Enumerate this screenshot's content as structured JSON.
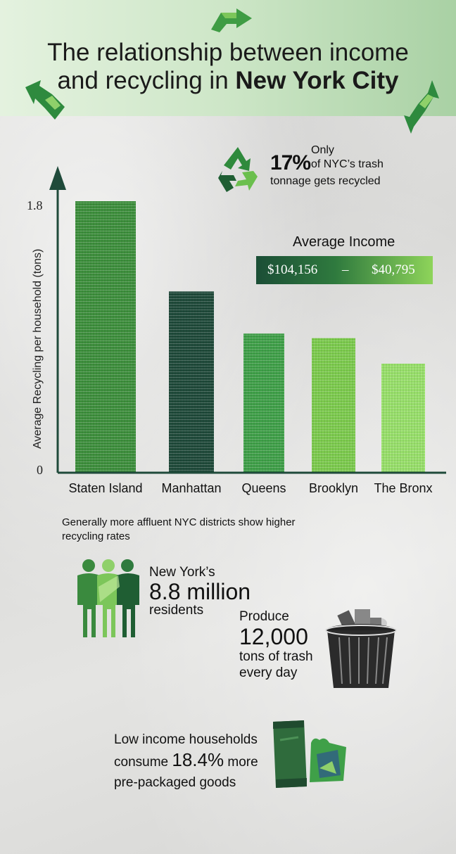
{
  "header": {
    "title_line1": "The relationship between income",
    "title_line2_pre": "and recycling in",
    "title_line2_bold": "New York City"
  },
  "stat_recycled": {
    "value": "17%",
    "line1": "Only",
    "line2": "of NYC’s trash",
    "line3": "tonnage gets recycled"
  },
  "income": {
    "label": "Average Income",
    "high": "$104,156",
    "separator": "–",
    "low": "$40,795"
  },
  "chart_data": {
    "type": "bar",
    "ylabel": "Average Recycling per household (tons)",
    "ylim": [
      0,
      1.8
    ],
    "ytick_labels": [
      "0",
      "1.8"
    ],
    "categories": [
      "Staten Island",
      "Manhattan",
      "Queens",
      "Brooklyn",
      "The Bronx"
    ],
    "values": [
      1.8,
      1.2,
      0.92,
      0.89,
      0.72
    ],
    "colors": [
      "#3d8f3c",
      "#1f4a3a",
      "#3fa048",
      "#7ccb4d",
      "#98e06a"
    ]
  },
  "note": "Generally more affluent NYC districts show higher recycling rates",
  "residents": {
    "line1": "New York’s",
    "line2": "8.8 million",
    "line3": "residents"
  },
  "produce": {
    "line1": "Produce",
    "line2": "12,000",
    "line3": "tons of trash",
    "line4": "every day"
  },
  "lowincome": {
    "line1": "Low income households",
    "line2_pre": "consume",
    "line2_big": "18.4%",
    "line2_post": "more",
    "line3": "pre-packaged goods"
  },
  "icons": [
    "recycle-arrow-icon",
    "recycle-icon",
    "people-icon",
    "trash-can-icon",
    "packaged-goods-icon"
  ]
}
